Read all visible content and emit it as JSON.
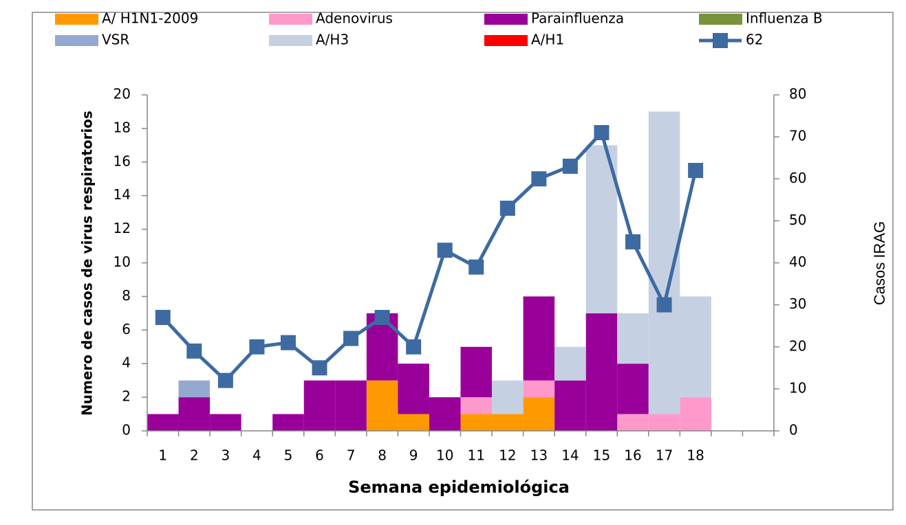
{
  "chart_data": {
    "type": "bar",
    "stacked": true,
    "x_label": "Semana epidemiológica",
    "y_label": "Numero de casos  de virus respiratorios",
    "y2_label": "Casos IRAG",
    "categories": [
      "1",
      "2",
      "3",
      "4",
      "5",
      "6",
      "7",
      "8",
      "9",
      "10",
      "11",
      "12",
      "13",
      "14",
      "15",
      "16",
      "17",
      "18",
      null,
      null
    ],
    "series": [
      {
        "name": "A/ H1N1-2009",
        "color": "#ff9900",
        "values": [
          0,
          0,
          0,
          0,
          0,
          0,
          0,
          3,
          1,
          0,
          1,
          1,
          2,
          0,
          0,
          0,
          0,
          0,
          null,
          null
        ]
      },
      {
        "name": "Adenovirus",
        "color": "#ff99cc",
        "values": [
          0,
          0,
          0,
          0,
          0,
          0,
          0,
          0,
          0,
          0,
          1,
          0,
          1,
          0,
          0,
          1,
          1,
          2,
          null,
          null
        ]
      },
      {
        "name": "Parainfluenza",
        "color": "#990099",
        "values": [
          1,
          2,
          1,
          0,
          1,
          3,
          3,
          4,
          3,
          2,
          3,
          0,
          5,
          3,
          7,
          3,
          0,
          0,
          null,
          null
        ]
      },
      {
        "name": "Influenza B",
        "color": "#77933c",
        "values": [
          0,
          0,
          0,
          0,
          0,
          0,
          0,
          0,
          0,
          0,
          0,
          0,
          0,
          0,
          0,
          0,
          0,
          0,
          null,
          null
        ]
      },
      {
        "name": "VSR",
        "color": "#95a9d0",
        "values": [
          0,
          1,
          0,
          0,
          0,
          0,
          0,
          0,
          0,
          0,
          0,
          0,
          0,
          0,
          0,
          0,
          0,
          0,
          null,
          null
        ]
      },
      {
        "name": "A/H3",
        "color": "#c6d0e3",
        "values": [
          0,
          0,
          0,
          0,
          0,
          0,
          0,
          0,
          0,
          0,
          0,
          2,
          0,
          2,
          10,
          3,
          18,
          6,
          null,
          null
        ]
      },
      {
        "name": "A/H1",
        "color": "#ff0000",
        "values": [
          0,
          0,
          0,
          0,
          0,
          0,
          0,
          0,
          0,
          0,
          0,
          0,
          0,
          0,
          0,
          0,
          0,
          0,
          null,
          null
        ]
      },
      {
        "name": "62",
        "color": "#3d6aa1",
        "type": "line",
        "axis": "y2",
        "values": [
          27,
          19,
          12,
          20,
          21,
          15,
          22,
          27,
          20,
          43,
          39,
          53,
          60,
          63,
          71,
          45,
          30,
          62,
          null,
          null
        ]
      }
    ],
    "ylim": [
      0,
      20
    ],
    "yticks": [
      0,
      2,
      4,
      6,
      8,
      10,
      12,
      14,
      16,
      18,
      20
    ],
    "y2lim": [
      0,
      80
    ],
    "y2ticks": [
      0,
      10,
      20,
      30,
      40,
      50,
      60,
      70,
      80
    ]
  }
}
